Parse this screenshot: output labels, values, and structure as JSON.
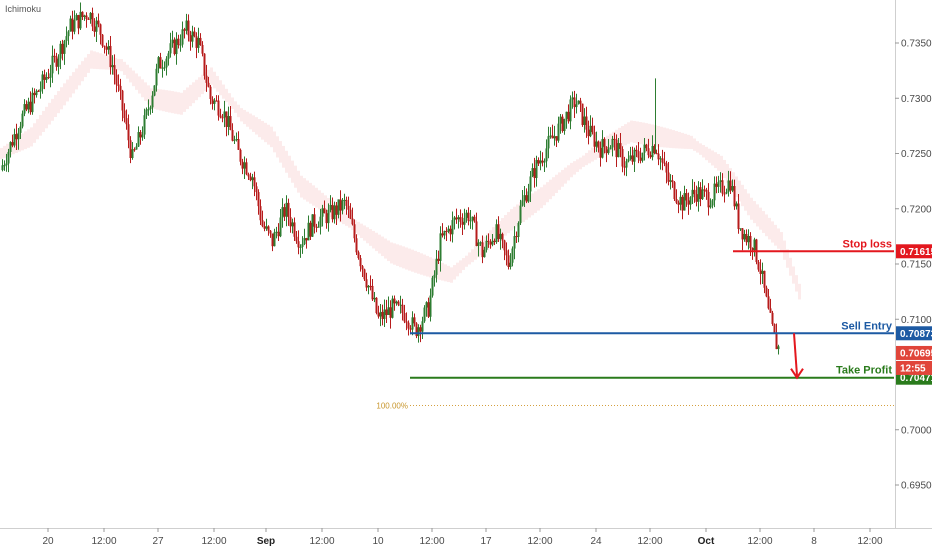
{
  "indicator_label": "Ichimoku",
  "chart_data": {
    "type": "candlestick",
    "ylim": [
      0.6915,
      0.739
    ],
    "y_ticks": [
      "0.73500",
      "0.73000",
      "0.72500",
      "0.72000",
      "0.71500",
      "0.71000",
      "0.70000",
      "0.69500"
    ],
    "y_tick_values": [
      0.735,
      0.73,
      0.725,
      0.72,
      0.715,
      0.71,
      0.7,
      0.695
    ],
    "x_ticks": [
      "20",
      "12:00",
      "27",
      "12:00",
      "Sep",
      "12:00",
      "10",
      "12:00",
      "17",
      "12:00",
      "24",
      "12:00",
      "Oct",
      "12:00",
      "8",
      "12:00"
    ],
    "x_tick_bold": [
      false,
      false,
      false,
      false,
      true,
      false,
      false,
      false,
      false,
      false,
      false,
      false,
      true,
      false,
      false,
      false
    ],
    "x_tick_index": [
      48,
      104,
      158,
      214,
      266,
      322,
      378,
      432,
      486,
      540,
      596,
      650,
      706,
      760,
      814,
      870
    ],
    "price_path": [
      [
        0,
        0.7235
      ],
      [
        20,
        0.728
      ],
      [
        40,
        0.731
      ],
      [
        55,
        0.7335
      ],
      [
        70,
        0.7365
      ],
      [
        88,
        0.7378
      ],
      [
        100,
        0.736
      ],
      [
        112,
        0.733
      ],
      [
        122,
        0.729
      ],
      [
        132,
        0.7245
      ],
      [
        145,
        0.728
      ],
      [
        158,
        0.733
      ],
      [
        172,
        0.7345
      ],
      [
        186,
        0.7362
      ],
      [
        198,
        0.735
      ],
      [
        210,
        0.73
      ],
      [
        222,
        0.729
      ],
      [
        238,
        0.725
      ],
      [
        252,
        0.723
      ],
      [
        262,
        0.7185
      ],
      [
        272,
        0.717
      ],
      [
        285,
        0.72
      ],
      [
        300,
        0.717
      ],
      [
        315,
        0.719
      ],
      [
        330,
        0.7195
      ],
      [
        345,
        0.7205
      ],
      [
        358,
        0.716
      ],
      [
        368,
        0.713
      ],
      [
        378,
        0.71
      ],
      [
        392,
        0.711
      ],
      [
        405,
        0.7105
      ],
      [
        415,
        0.709
      ],
      [
        428,
        0.711
      ],
      [
        440,
        0.717
      ],
      [
        455,
        0.719
      ],
      [
        468,
        0.7195
      ],
      [
        482,
        0.716
      ],
      [
        495,
        0.718
      ],
      [
        508,
        0.715
      ],
      [
        520,
        0.72
      ],
      [
        534,
        0.7235
      ],
      [
        546,
        0.7255
      ],
      [
        560,
        0.7275
      ],
      [
        575,
        0.7298
      ],
      [
        588,
        0.727
      ],
      [
        600,
        0.7255
      ],
      [
        612,
        0.726
      ],
      [
        625,
        0.724
      ],
      [
        640,
        0.725
      ],
      [
        655,
        0.7258
      ],
      [
        668,
        0.7225
      ],
      [
        682,
        0.7205
      ],
      [
        696,
        0.7215
      ],
      [
        708,
        0.721
      ],
      [
        720,
        0.7218
      ],
      [
        730,
        0.7225
      ],
      [
        738,
        0.7188
      ],
      [
        745,
        0.7175
      ],
      [
        752,
        0.717
      ],
      [
        760,
        0.7145
      ],
      [
        768,
        0.7105
      ],
      [
        774,
        0.7082
      ],
      [
        779,
        0.7072
      ]
    ],
    "cloud_path": [
      [
        0,
        0.725
      ],
      [
        30,
        0.7265
      ],
      [
        60,
        0.73
      ],
      [
        90,
        0.7335
      ],
      [
        120,
        0.733
      ],
      [
        150,
        0.73
      ],
      [
        180,
        0.7295
      ],
      [
        210,
        0.732
      ],
      [
        240,
        0.7285
      ],
      [
        270,
        0.7265
      ],
      [
        300,
        0.722
      ],
      [
        330,
        0.72
      ],
      [
        360,
        0.718
      ],
      [
        390,
        0.716
      ],
      [
        420,
        0.715
      ],
      [
        450,
        0.714
      ],
      [
        480,
        0.7165
      ],
      [
        510,
        0.719
      ],
      [
        540,
        0.721
      ],
      [
        570,
        0.7235
      ],
      [
        600,
        0.7255
      ],
      [
        630,
        0.727
      ],
      [
        660,
        0.7265
      ],
      [
        690,
        0.726
      ],
      [
        720,
        0.724
      ],
      [
        750,
        0.72
      ],
      [
        780,
        0.717
      ],
      [
        800,
        0.712
      ]
    ],
    "levels": [
      {
        "name": "Stop loss",
        "value": "0.71615",
        "price": 0.71615,
        "color": "#e3171e",
        "x_from": 733
      },
      {
        "name": "Sell Entry",
        "value": "0.70873",
        "price": 0.70873,
        "color": "#1d5aa3",
        "x_from": 410
      },
      {
        "name": "Take Profit",
        "value": "0.70471",
        "price": 0.70471,
        "color": "#2a7b1c",
        "x_from": 410
      }
    ],
    "current_price": "0.70695",
    "current_price_value": 0.70695,
    "countdown": "12:55",
    "fib_label": "100.00%",
    "fib_price": 0.7022,
    "arrow": {
      "from_x": 794,
      "from_price": 0.70873,
      "to_x": 797,
      "to_price": 0.70471
    }
  },
  "colors": {
    "up": "#2e7d32",
    "down": "#b71c1c",
    "cloud": "#f5c6c6",
    "badge_current": "#e0453a",
    "badge_countdown": "#e0453a",
    "fib": "#d4a040",
    "axis_line": "#cfcfcf"
  }
}
